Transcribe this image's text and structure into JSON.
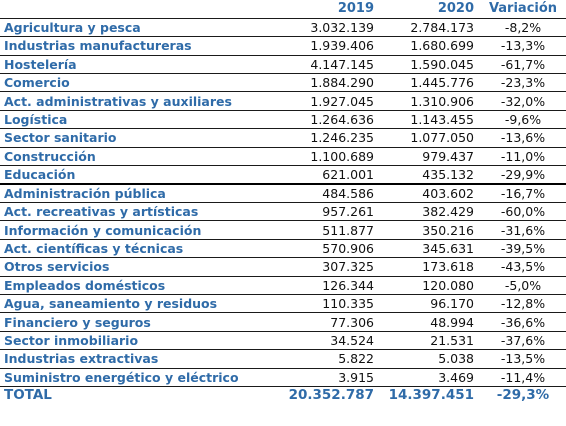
{
  "header": {
    "sector": "",
    "y2019": "2019",
    "y2020": "2020",
    "change": "Variación"
  },
  "rows": [
    {
      "sector": "Agricultura y pesca",
      "y2019": "3.032.139",
      "y2020": "2.784.173",
      "change": "-8,2%"
    },
    {
      "sector": "Industrias manufactureras",
      "y2019": "1.939.406",
      "y2020": "1.680.699",
      "change": "-13,3%"
    },
    {
      "sector": "Hostelería",
      "y2019": "4.147.145",
      "y2020": "1.590.045",
      "change": "-61,7%"
    },
    {
      "sector": "Comercio",
      "y2019": "1.884.290",
      "y2020": "1.445.776",
      "change": "-23,3%"
    },
    {
      "sector": "Act. administrativas y auxiliares",
      "y2019": "1.927.045",
      "y2020": "1.310.906",
      "change": "-32,0%"
    },
    {
      "sector": "Logística",
      "y2019": "1.264.636",
      "y2020": "1.143.455",
      "change": "-9,6%"
    },
    {
      "sector": "Sector sanitario",
      "y2019": "1.246.235",
      "y2020": "1.077.050",
      "change": "-13,6%"
    },
    {
      "sector": "Construcción",
      "y2019": "1.100.689",
      "y2020": "979.437",
      "change": "-11,0%"
    },
    {
      "sector": "Educación",
      "y2019": "621.001",
      "y2020": "435.132",
      "change": "-29,9%"
    },
    {
      "sector": "Administración pública",
      "y2019": "484.586",
      "y2020": "403.602",
      "change": "-16,7%"
    },
    {
      "sector": "Act. recreativas y artísticas",
      "y2019": "957.261",
      "y2020": "382.429",
      "change": "-60,0%"
    },
    {
      "sector": "Información y comunicación",
      "y2019": "511.877",
      "y2020": "350.216",
      "change": "-31,6%"
    },
    {
      "sector": "Act. científicas y técnicas",
      "y2019": "570.906",
      "y2020": "345.631",
      "change": "-39,5%"
    },
    {
      "sector": "Otros servicios",
      "y2019": "307.325",
      "y2020": "173.618",
      "change": "-43,5%"
    },
    {
      "sector": "Empleados domésticos",
      "y2019": "126.344",
      "y2020": "120.080",
      "change": "-5,0%"
    },
    {
      "sector": "Agua, saneamiento y residuos",
      "y2019": "110.335",
      "y2020": "96.170",
      "change": "-12,8%"
    },
    {
      "sector": "Financiero y seguros",
      "y2019": "77.306",
      "y2020": "48.994",
      "change": "-36,6%"
    },
    {
      "sector": "Sector inmobiliario",
      "y2019": "34.524",
      "y2020": "21.531",
      "change": "-37,6%"
    },
    {
      "sector": "Industrias extractivas",
      "y2019": "5.822",
      "y2020": "5.038",
      "change": "-13,5%"
    },
    {
      "sector": "Suministro energético y eléctrico",
      "y2019": "3.915",
      "y2020": "3.469",
      "change": "-11,4%"
    }
  ],
  "total": {
    "sector": "TOTAL",
    "y2019": "20.352.787",
    "y2020": "14.397.451",
    "change": "-29,3%"
  },
  "colors": {
    "label": "#2f6ba8",
    "value": "#111111",
    "rule": "#1a1a1a"
  }
}
